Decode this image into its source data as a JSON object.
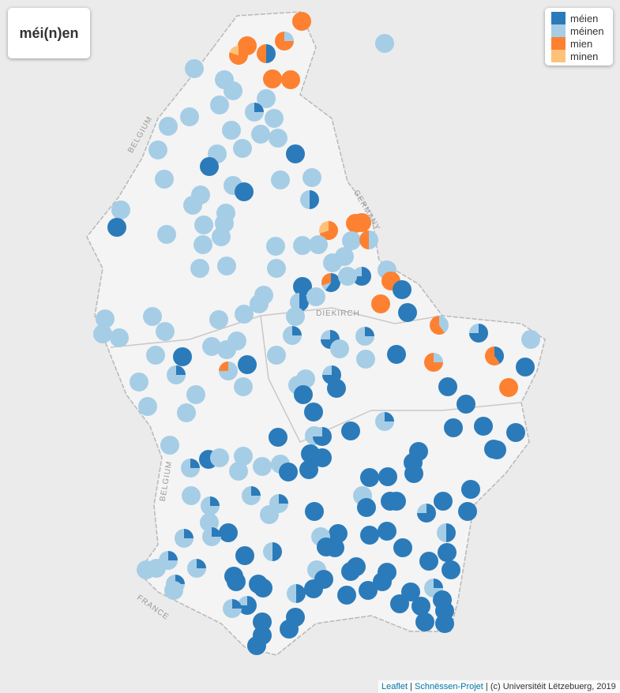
{
  "title": "méi(n)en",
  "legend": [
    {
      "name": "méien",
      "color": "#2b7bba"
    },
    {
      "name": "méinen",
      "color": "#a6cde6"
    },
    {
      "name": "mien",
      "color": "#fd8130"
    },
    {
      "name": "minen",
      "color": "#fdc27a"
    }
  ],
  "places": [
    "BELGIUM",
    "GERMANY",
    "DIEKIRCH",
    "BELGIUM",
    "FRANCE"
  ],
  "attribution": [
    "Leaflet",
    "Schnëssen-Projet",
    "(c) Universitéit Lëtzebuerg, 2019"
  ],
  "markers": [
    [
      0,
      0,
      100,
      0
    ],
    [
      0,
      100,
      0,
      0
    ],
    [
      0,
      0,
      100,
      0
    ],
    [
      0,
      0,
      80,
      20
    ],
    [
      50,
      0,
      50,
      0
    ],
    [
      0,
      25,
      75,
      0
    ],
    [
      0,
      0,
      100,
      0
    ],
    [
      0,
      0,
      100,
      0
    ],
    [
      0,
      100,
      0,
      0
    ],
    [
      0,
      100,
      0,
      0
    ],
    [
      0,
      100,
      0,
      0
    ],
    [
      0,
      100,
      0,
      0
    ],
    [
      0,
      100,
      0,
      0
    ],
    [
      25,
      75,
      0,
      0
    ],
    [
      0,
      100,
      0,
      0
    ],
    [
      0,
      100,
      0,
      0
    ],
    [
      0,
      100,
      0,
      0
    ],
    [
      0,
      100,
      0,
      0
    ],
    [
      0,
      100,
      0,
      0
    ],
    [
      0,
      100,
      0,
      0
    ],
    [
      0,
      100,
      0,
      0
    ],
    [
      0,
      100,
      0,
      0
    ],
    [
      100,
      0,
      0,
      0
    ],
    [
      0,
      100,
      0,
      0
    ],
    [
      100,
      0,
      0,
      0
    ],
    [
      0,
      100,
      0,
      0
    ],
    [
      0,
      100,
      0,
      0
    ],
    [
      0,
      100,
      0,
      0
    ],
    [
      0,
      100,
      0,
      0
    ],
    [
      100,
      0,
      0,
      0
    ],
    [
      0,
      100,
      0,
      0
    ],
    [
      0,
      100,
      0,
      0
    ],
    [
      50,
      50,
      0,
      0
    ],
    [
      0,
      100,
      0,
      0
    ],
    [
      0,
      100,
      0,
      0
    ],
    [
      100,
      0,
      0,
      0
    ],
    [
      0,
      100,
      0,
      0
    ],
    [
      0,
      100,
      0,
      0
    ],
    [
      0,
      100,
      0,
      0
    ],
    [
      0,
      0,
      100,
      0
    ],
    [
      0,
      0,
      100,
      0
    ],
    [
      0,
      0,
      70,
      30
    ],
    [
      0,
      100,
      0,
      0
    ],
    [
      0,
      50,
      50,
      0
    ],
    [
      0,
      100,
      0,
      0
    ],
    [
      0,
      100,
      0,
      0
    ],
    [
      0,
      100,
      0,
      0
    ],
    [
      0,
      100,
      0,
      0
    ],
    [
      0,
      100,
      0,
      0
    ],
    [
      0,
      100,
      0,
      0
    ],
    [
      0,
      100,
      0,
      0
    ],
    [
      0,
      100,
      0,
      0
    ],
    [
      0,
      100,
      0,
      0
    ],
    [
      0,
      100,
      0,
      0
    ],
    [
      0,
      100,
      0,
      0
    ],
    [
      75,
      25,
      0,
      0
    ],
    [
      60,
      10,
      30,
      0
    ],
    [
      0,
      0,
      100,
      0
    ],
    [
      100,
      0,
      0,
      0
    ],
    [
      0,
      100,
      0,
      0
    ],
    [
      100,
      0,
      0,
      0
    ],
    [
      0,
      100,
      0,
      0
    ],
    [
      50,
      50,
      0,
      0
    ],
    [
      0,
      100,
      0,
      0
    ],
    [
      0,
      100,
      0,
      0
    ],
    [
      0,
      0,
      100,
      0
    ],
    [
      100,
      0,
      0,
      0
    ],
    [
      0,
      100,
      0,
      0
    ],
    [
      0,
      100,
      0,
      0
    ],
    [
      0,
      100,
      0,
      0
    ],
    [
      0,
      100,
      0,
      0
    ],
    [
      0,
      100,
      0,
      0
    ],
    [
      0,
      100,
      0,
      0
    ],
    [
      0,
      100,
      0,
      0
    ],
    [
      0,
      100,
      0,
      0
    ],
    [
      0,
      40,
      60,
      0
    ],
    [
      75,
      25,
      0,
      0
    ],
    [
      0,
      100,
      0,
      0
    ],
    [
      25,
      75,
      0,
      0
    ],
    [
      0,
      100,
      0,
      0
    ],
    [
      0,
      100,
      0,
      0
    ],
    [
      75,
      25,
      0,
      0
    ],
    [
      25,
      75,
      0,
      0
    ],
    [
      0,
      100,
      0,
      0
    ],
    [
      0,
      100,
      0,
      0
    ],
    [
      0,
      100,
      0,
      0
    ],
    [
      100,
      0,
      0,
      0
    ],
    [
      0,
      100,
      0,
      0
    ],
    [
      100,
      0,
      0,
      0
    ],
    [
      0,
      25,
      75,
      0
    ],
    [
      40,
      0,
      60,
      0
    ],
    [
      0,
      100,
      0,
      0
    ],
    [
      100,
      0,
      0,
      0
    ],
    [
      0,
      75,
      25,
      0
    ],
    [
      25,
      75,
      0,
      0
    ],
    [
      100,
      0,
      0,
      0
    ],
    [
      75,
      25,
      0,
      0
    ],
    [
      0,
      100,
      0,
      0
    ],
    [
      0,
      100,
      0,
      0
    ],
    [
      0,
      100,
      0,
      0
    ],
    [
      0,
      100,
      0,
      0
    ],
    [
      100,
      0,
      0,
      0
    ],
    [
      0,
      100,
      0,
      0
    ],
    [
      100,
      0,
      0,
      0
    ],
    [
      0,
      0,
      100,
      0
    ],
    [
      100,
      0,
      0,
      0
    ],
    [
      100,
      0,
      0,
      0
    ],
    [
      0,
      100,
      0,
      0
    ],
    [
      0,
      100,
      0,
      0
    ],
    [
      100,
      0,
      0,
      0
    ],
    [
      25,
      75,
      0,
      0
    ],
    [
      100,
      0,
      0,
      0
    ],
    [
      100,
      0,
      0,
      0
    ],
    [
      100,
      0,
      0,
      0
    ],
    [
      100,
      0,
      0,
      0
    ],
    [
      100,
      0,
      0,
      0
    ],
    [
      0,
      100,
      0,
      0
    ],
    [
      75,
      25,
      0,
      0
    ],
    [
      0,
      100,
      0,
      0
    ],
    [
      100,
      0,
      0,
      0
    ],
    [
      100,
      0,
      0,
      0
    ],
    [
      100,
      0,
      0,
      0
    ],
    [
      100,
      0,
      0,
      0
    ],
    [
      100,
      0,
      0,
      0
    ],
    [
      100,
      0,
      0,
      0
    ],
    [
      0,
      100,
      0,
      0
    ],
    [
      0,
      100,
      0,
      0
    ],
    [
      25,
      75,
      0,
      0
    ],
    [
      0,
      100,
      0,
      0
    ],
    [
      0,
      100,
      0,
      0
    ],
    [
      100,
      0,
      0,
      0
    ],
    [
      100,
      0,
      0,
      0
    ],
    [
      100,
      0,
      0,
      0
    ],
    [
      0,
      100,
      0,
      0
    ],
    [
      100,
      0,
      0,
      0
    ],
    [
      100,
      0,
      0,
      0
    ],
    [
      100,
      0,
      0,
      0
    ],
    [
      100,
      0,
      0,
      0
    ],
    [
      0,
      100,
      0,
      0
    ],
    [
      25,
      75,
      0,
      0
    ],
    [
      0,
      100,
      0,
      0
    ],
    [
      100,
      0,
      0,
      0
    ],
    [
      100,
      0,
      0,
      0
    ],
    [
      100,
      0,
      0,
      0
    ],
    [
      25,
      75,
      0,
      0
    ],
    [
      25,
      75,
      0,
      0
    ],
    [
      100,
      0,
      0,
      0
    ],
    [
      100,
      0,
      0,
      0
    ],
    [
      100,
      0,
      0,
      0
    ],
    [
      75,
      25,
      0,
      0
    ],
    [
      0,
      100,
      0,
      0
    ],
    [
      0,
      100,
      0,
      0
    ],
    [
      50,
      50,
      0,
      0
    ],
    [
      100,
      0,
      0,
      0
    ],
    [
      25,
      75,
      0,
      0
    ],
    [
      100,
      0,
      0,
      0
    ],
    [
      25,
      75,
      0,
      0
    ],
    [
      0,
      100,
      0,
      0
    ],
    [
      100,
      0,
      0,
      0
    ],
    [
      100,
      0,
      0,
      0
    ],
    [
      100,
      0,
      0,
      0
    ],
    [
      100,
      0,
      0,
      0
    ],
    [
      100,
      0,
      0,
      0
    ],
    [
      100,
      0,
      0,
      0
    ],
    [
      100,
      0,
      0,
      0
    ],
    [
      50,
      50,
      0,
      0
    ],
    [
      25,
      75,
      0,
      0
    ],
    [
      100,
      0,
      0,
      0
    ],
    [
      0,
      100,
      0,
      0
    ],
    [
      0,
      100,
      0,
      0
    ],
    [
      25,
      75,
      0,
      0
    ],
    [
      100,
      0,
      0,
      0
    ],
    [
      100,
      0,
      0,
      0
    ],
    [
      0,
      100,
      0,
      0
    ],
    [
      100,
      0,
      0,
      0
    ],
    [
      100,
      0,
      0,
      0
    ],
    [
      100,
      0,
      0,
      0
    ],
    [
      100,
      0,
      0,
      0
    ],
    [
      25,
      75,
      0,
      0
    ],
    [
      100,
      0,
      0,
      0
    ],
    [
      100,
      0,
      0,
      0
    ],
    [
      100,
      0,
      0,
      0
    ],
    [
      100,
      0,
      0,
      0
    ],
    [
      100,
      0,
      0,
      0
    ],
    [
      100,
      0,
      0,
      0
    ],
    [
      50,
      50,
      0,
      0
    ],
    [
      25,
      75,
      0,
      0
    ],
    [
      100,
      0,
      0,
      0
    ],
    [
      100,
      0,
      0,
      0
    ],
    [
      0,
      100,
      0,
      0
    ],
    [
      75,
      25,
      0,
      0
    ],
    [
      25,
      75,
      0,
      0
    ],
    [
      100,
      0,
      0,
      0
    ],
    [
      100,
      0,
      0,
      0
    ],
    [
      100,
      0,
      0,
      0
    ],
    [
      100,
      0,
      0,
      0
    ],
    [
      100,
      0,
      0,
      0
    ],
    [
      100,
      0,
      0,
      0
    ],
    [
      100,
      0,
      0,
      0
    ],
    [
      100,
      0,
      0,
      0
    ],
    [
      100,
      0,
      0,
      0
    ],
    [
      100,
      0,
      0,
      0
    ],
    [
      100,
      0,
      0,
      0
    ]
  ]
}
